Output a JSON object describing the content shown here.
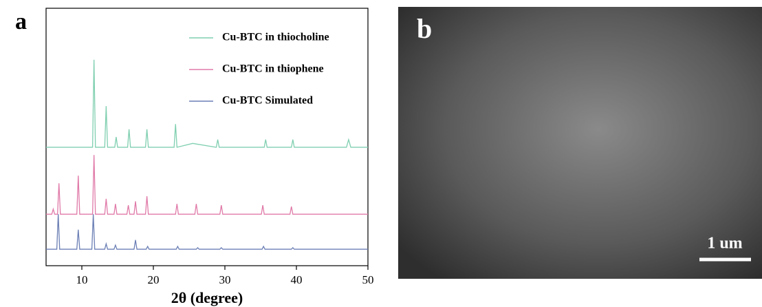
{
  "panel_labels": [
    "a",
    "b"
  ],
  "scale_bar": "1 um",
  "chart_data": {
    "type": "line",
    "xlabel": "2θ (degree)",
    "xlim": [
      5,
      50
    ],
    "xticks": [
      10,
      20,
      30,
      40,
      50
    ],
    "ylim": [
      0,
      100
    ],
    "series": [
      {
        "name": "Cu-BTC in  thiocholine",
        "color": "#7fcfb0",
        "x": [
          5,
          11.5,
          11.7,
          11.9,
          13.2,
          13.4,
          13.6,
          14.6,
          14.8,
          15,
          16.4,
          16.6,
          16.8,
          18.9,
          19.1,
          19.3,
          22.9,
          23.1,
          23.3,
          25.5,
          28.8,
          29,
          29.2,
          35.5,
          35.7,
          35.9,
          39.3,
          39.5,
          39.7,
          47,
          47.3,
          47.6,
          50
        ],
        "values": [
          46,
          46,
          80,
          46,
          46,
          62,
          46,
          46,
          50,
          46,
          46,
          53,
          46,
          46,
          53,
          46,
          46,
          55,
          46,
          47.5,
          46,
          49,
          46,
          46,
          49,
          46,
          46,
          49,
          46,
          46,
          49,
          46,
          46
        ]
      },
      {
        "name": "Cu-BTC in  thiophene",
        "color": "#e07aa8",
        "x": [
          5,
          5.8,
          6,
          6.2,
          6.6,
          6.8,
          7,
          9.3,
          9.5,
          9.7,
          11.5,
          11.7,
          11.9,
          13.2,
          13.4,
          13.6,
          14.5,
          14.7,
          14.9,
          16.3,
          16.5,
          16.7,
          17.3,
          17.5,
          17.7,
          18.9,
          19.1,
          19.3,
          23.1,
          23.3,
          23.5,
          25.8,
          26,
          26.2,
          29.3,
          29.5,
          29.7,
          35.1,
          35.3,
          35.5,
          39.1,
          39.3,
          39.5,
          50
        ],
        "values": [
          20,
          20,
          22,
          20,
          20,
          32,
          20,
          20,
          35,
          20,
          20,
          43,
          20,
          20,
          26,
          20,
          20,
          24,
          20,
          20,
          23.5,
          20,
          20,
          25,
          20,
          20,
          27,
          20,
          20,
          24,
          20,
          20,
          24,
          20,
          20,
          23.5,
          20,
          20,
          23.5,
          20,
          20,
          23,
          20,
          20
        ]
      },
      {
        "name": "Cu-BTC Simulated",
        "color": "#6b7fb5",
        "x": [
          5,
          6.5,
          6.7,
          6.9,
          9.3,
          9.5,
          9.7,
          11.4,
          11.6,
          11.8,
          13.2,
          13.4,
          13.6,
          14.5,
          14.7,
          14.9,
          17.3,
          17.5,
          17.7,
          19,
          19.2,
          19.4,
          23.2,
          23.4,
          23.6,
          26,
          26.2,
          26.4,
          29.3,
          29.5,
          29.7,
          35.2,
          35.4,
          35.6,
          39.3,
          39.5,
          39.7,
          50
        ],
        "values": [
          6.4,
          6.4,
          20,
          6.4,
          6.4,
          14,
          6.4,
          6.4,
          20,
          6.4,
          6.4,
          8.5,
          6.4,
          6.4,
          8,
          6.4,
          6.4,
          10,
          6.4,
          6.4,
          7.5,
          6.4,
          6.4,
          7.5,
          6.4,
          6.4,
          7,
          6.4,
          6.4,
          7,
          6.4,
          6.4,
          7.5,
          6.4,
          6.4,
          7,
          6.4,
          6.4
        ]
      }
    ]
  }
}
